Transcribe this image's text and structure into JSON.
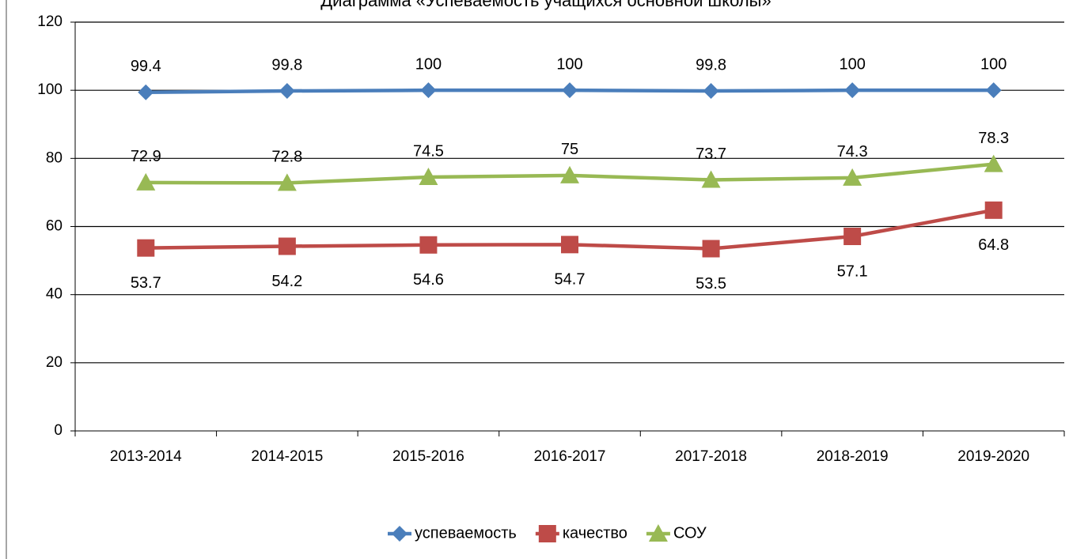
{
  "chart_data": {
    "type": "line",
    "title": "Диаграмма «Успеваемость учащихся основной школы»",
    "categories": [
      "2013-2014",
      "2014-2015",
      "2015-2016",
      "2016-2017",
      "2017-2018",
      "2018-2019",
      "2019-2020"
    ],
    "series": [
      {
        "name": "успеваемость",
        "color": "#4a7ebb",
        "marker": "diamond",
        "values": [
          99.4,
          99.8,
          100,
          100,
          99.8,
          100,
          100
        ]
      },
      {
        "name": "качество",
        "color": "#be4b48",
        "marker": "square",
        "values": [
          53.7,
          54.2,
          54.6,
          54.7,
          53.5,
          57.1,
          64.8
        ]
      },
      {
        "name": "СОУ",
        "color": "#98b954",
        "marker": "triangle",
        "values": [
          72.9,
          72.8,
          74.5,
          75,
          73.7,
          74.3,
          78.3
        ]
      }
    ],
    "ylim": [
      0,
      120
    ],
    "yticks": [
      0,
      20,
      40,
      60,
      80,
      100,
      120
    ],
    "grid": true,
    "legend": "bottom"
  }
}
